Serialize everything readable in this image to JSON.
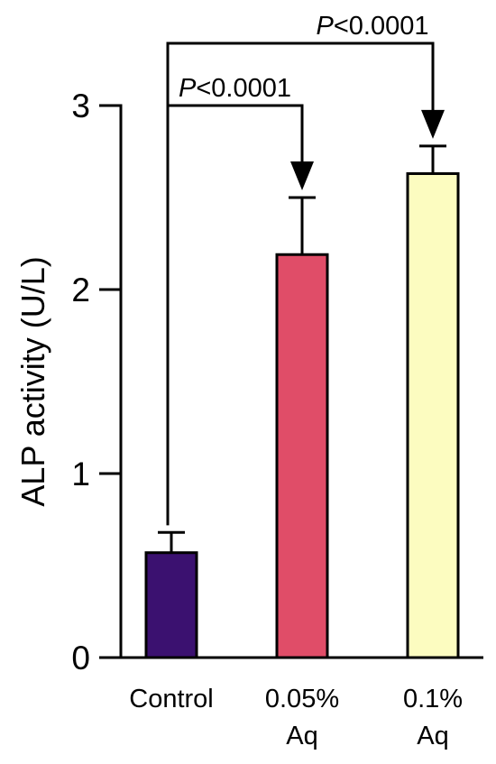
{
  "chart_data": {
    "type": "bar",
    "title": "",
    "xlabel": "",
    "ylabel": "ALP activity (U/L)",
    "ylim": [
      0,
      3
    ],
    "yticks": [
      0,
      1,
      2,
      3
    ],
    "ytick_labels": [
      "0",
      "1",
      "2",
      "3"
    ],
    "grid": false,
    "categories": [
      {
        "lines": [
          "Control"
        ]
      },
      {
        "lines": [
          "0.05%",
          "Aq"
        ]
      },
      {
        "lines": [
          "0.1%",
          "Aq"
        ]
      }
    ],
    "values": [
      0.57,
      2.19,
      2.63
    ],
    "errors": [
      0.11,
      0.31,
      0.15
    ],
    "colors": [
      "#3b1170",
      "#e04d68",
      "#fcfcc0"
    ],
    "annotations": [
      {
        "from": 0,
        "to": 1,
        "p_italic": "P",
        "text": "<0.0001"
      },
      {
        "from": 0,
        "to": 2,
        "p_italic": "P",
        "text": "<0.0001"
      }
    ]
  }
}
